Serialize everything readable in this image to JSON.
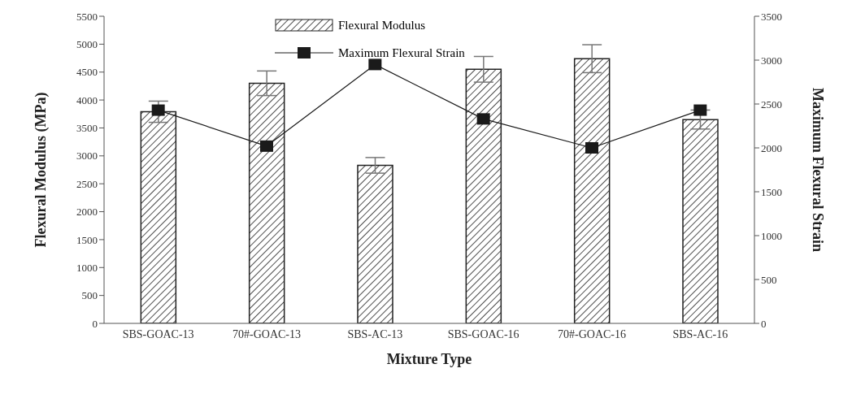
{
  "chart_data": {
    "type": "bar",
    "xlabel": "Mixture Type",
    "ylabel": "Flexural Modulus (MPa)",
    "y2label": "Maximum Flexural Strain",
    "categories": [
      "SBS-GOAC-13",
      "70#-GOAC-13",
      "SBS-AC-13",
      "SBS-GOAC-16",
      "70#-GOAC-16",
      "SBS-AC-16"
    ],
    "series": [
      {
        "name": "Flexural Modulus",
        "color": "#222222",
        "values": [
          3790,
          4300,
          2830,
          4550,
          4740,
          3650
        ],
        "errors": [
          190,
          220,
          140,
          230,
          250,
          170
        ]
      },
      {
        "name": "Maximum Flexural Strain",
        "type": "line",
        "axis": "y2",
        "color": "#1a1a1a",
        "marker": "square",
        "values": [
          2430,
          2020,
          2950,
          2330,
          2000,
          2430
        ]
      }
    ],
    "ylim": [
      0,
      5500
    ],
    "yticks": [
      0,
      500,
      1000,
      1500,
      2000,
      2500,
      3000,
      3500,
      4000,
      4500,
      5000,
      5500
    ],
    "y2lim": [
      0,
      3500
    ],
    "y2ticks": [
      0,
      500,
      1000,
      1500,
      2000,
      2500,
      3000,
      3500
    ],
    "legend": "top",
    "grid": false
  }
}
